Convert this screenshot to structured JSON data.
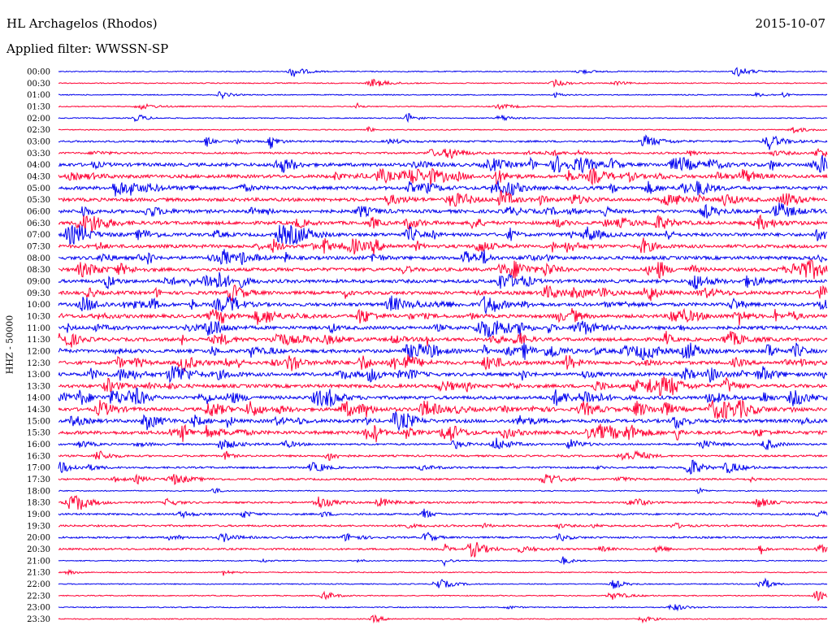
{
  "header": {
    "station": "HL Archagelos (Rhodos)",
    "date": "2015-10-07",
    "filter": "Applied filter: WWSSN-SP"
  },
  "chart_data": {
    "type": "line",
    "title": "HL Archagelos (Rhodos)",
    "ylabel": "HHZ - 50000",
    "x_range_minutes": [
      0,
      30
    ],
    "series_colors": [
      "#0000ee",
      "#ff0033"
    ],
    "rows": [
      "00:00",
      "00:30",
      "01:00",
      "01:30",
      "02:00",
      "02:30",
      "03:00",
      "03:30",
      "04:00",
      "04:30",
      "05:00",
      "05:30",
      "06:00",
      "06:30",
      "07:00",
      "07:30",
      "08:00",
      "08:30",
      "09:00",
      "09:30",
      "10:00",
      "10:30",
      "11:00",
      "11:30",
      "12:00",
      "12:30",
      "13:00",
      "13:30",
      "14:00",
      "14:30",
      "15:00",
      "15:30",
      "16:00",
      "16:30",
      "17:00",
      "17:30",
      "18:00",
      "18:30",
      "19:00",
      "19:30",
      "20:00",
      "20:30",
      "21:00",
      "21:30",
      "22:00",
      "22:30",
      "23:00",
      "23:30"
    ],
    "activity": [
      1,
      1,
      1,
      1,
      1,
      1,
      2,
      2,
      3,
      3,
      3,
      3,
      3,
      3,
      3,
      3,
      3,
      3,
      3,
      3,
      3,
      3,
      3,
      3,
      3,
      3,
      3,
      3,
      3,
      3,
      3,
      3,
      2,
      2,
      2,
      2,
      1,
      2,
      2,
      2,
      2,
      2,
      1,
      1,
      1,
      1,
      1,
      1
    ]
  }
}
